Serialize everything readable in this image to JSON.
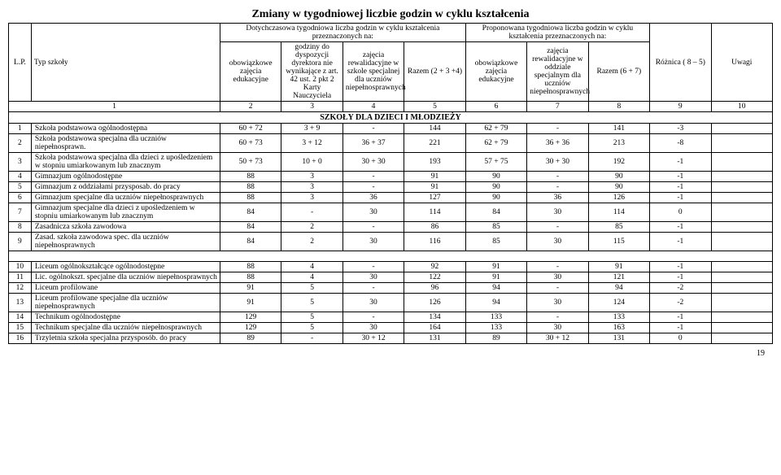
{
  "title": "Zmiany w tygodniowej liczbie godzin w cyklu kształcenia",
  "header": {
    "lp": "L.P.",
    "typ": "Typ szkoły",
    "dotych": "Dotychczasowa tygodniowa liczba godzin w cyklu kształcenia przeznaczonych na:",
    "prop": "Proponowana tygodniowa liczba godzin w cyklu kształcenia przeznaczonych na:",
    "obow": "obowiązkowe zajęcia edukacyjne",
    "godziny": "godziny do dyspozycji dyrektora nie wynikające z art. 42 ust. 2 pkt 2 Karty Nauczyciela",
    "rewal": "zajęcia rewalidacyjne w szkole specjalnej dla uczniów niepełnosprawnych",
    "razem1": "Razem (2 + 3 +4)",
    "rewal2": "zajęcia rewalidacyjne w oddziale specjalnym dla uczniów niepełnosprawnych",
    "razem2": "Razem (6 + 7)",
    "roznica": "Różnica ( 8 – 5)",
    "uwagi": "Uwagi",
    "nums": [
      "1",
      "2",
      "3",
      "4",
      "5",
      "6",
      "7",
      "8",
      "9",
      "10"
    ]
  },
  "section": "SZKOŁY  DLA  DZIECI  I  MŁODZIEŻY",
  "rows": [
    {
      "n": "1",
      "name": "Szkoła podstawowa ogólnodostępna",
      "v": [
        "60 + 72",
        "3 + 9",
        "-",
        "144",
        "62 + 79",
        "-",
        "141",
        "-3",
        ""
      ]
    },
    {
      "n": "2",
      "name": "Szkoła podstawowa specjalna dla uczniów niepełnosprawn.",
      "v": [
        "60 + 73",
        "3 + 12",
        "36 + 37",
        "221",
        "62 + 79",
        "36 + 36",
        "213",
        "-8",
        ""
      ]
    },
    {
      "n": "3",
      "name": "Szkoła podstawowa specjalna dla dzieci z upośledzeniem w stopniu umiarkowanym lub znacznym",
      "v": [
        "50 + 73",
        "10 + 0",
        "30 + 30",
        "193",
        "57 + 75",
        "30 + 30",
        "192",
        "-1",
        ""
      ]
    },
    {
      "n": "4",
      "name": "Gimnazjum ogólnodostępne",
      "v": [
        "88",
        "3",
        "-",
        "91",
        "90",
        "-",
        "90",
        "-1",
        ""
      ]
    },
    {
      "n": "5",
      "name": "Gimnazjum z oddziałami przysposab. do pracy",
      "v": [
        "88",
        "3",
        "-",
        "91",
        "90",
        "-",
        "90",
        "-1",
        ""
      ]
    },
    {
      "n": "6",
      "name": "Gimnazjum specjalne dla uczniów niepełnosprawnych",
      "v": [
        "88",
        "3",
        "36",
        "127",
        "90",
        "36",
        "126",
        "-1",
        ""
      ]
    },
    {
      "n": "7",
      "name": "Gimnazjum specjalne dla dzieci z upośledzeniem w stopniu umiarkowanym lub znacznym",
      "v": [
        "84",
        "-",
        "30",
        "114",
        "84",
        "30",
        "114",
        "0",
        ""
      ]
    },
    {
      "n": "8",
      "name": "Zasadnicza szkoła zawodowa",
      "v": [
        "84",
        "2",
        "-",
        "86",
        "85",
        "-",
        "85",
        "-1",
        ""
      ]
    },
    {
      "n": "9",
      "name": "Zasad. szkoła zawodowa spec. dla uczniów niepełnosprawnych",
      "v": [
        "84",
        "2",
        "30",
        "116",
        "85",
        "30",
        "115",
        "-1",
        ""
      ]
    },
    {
      "n": "10",
      "name": "Liceum ogólnokształcące ogólnodostępne",
      "v": [
        "88",
        "4",
        "-",
        "92",
        "91",
        "-",
        "91",
        "-1",
        ""
      ]
    },
    {
      "n": "11",
      "name": "Lic. ogólnokszt.  specjalne dla uczniów niepełnosprawnych",
      "v": [
        "88",
        "4",
        "30",
        "122",
        "91",
        "30",
        "121",
        "-1",
        ""
      ]
    },
    {
      "n": "12",
      "name": "Liceum profilowane",
      "v": [
        "91",
        "5",
        "-",
        "96",
        "94",
        "-",
        "94",
        "-2",
        ""
      ]
    },
    {
      "n": "13",
      "name": "Liceum profilowane specjalne dla uczniów niepełnosprawnych",
      "v": [
        "91",
        "5",
        "30",
        "126",
        "94",
        "30",
        "124",
        "-2",
        ""
      ]
    },
    {
      "n": "14",
      "name": "Technikum ogólnodostępne",
      "v": [
        "129",
        "5",
        "-",
        "134",
        "133",
        "-",
        "133",
        "-1",
        ""
      ]
    },
    {
      "n": "15",
      "name": "Technikum specjalne dla uczniów niepełnosprawnych",
      "v": [
        "129",
        "5",
        "30",
        "164",
        "133",
        "30",
        "163",
        "-1",
        ""
      ]
    },
    {
      "n": "16",
      "name": "Trzyletnia szkoła specjalna przysposób. do pracy",
      "v": [
        "89",
        "-",
        "30 + 12",
        "131",
        "89",
        "30 + 12",
        "131",
        "0",
        ""
      ]
    }
  ],
  "gapAfter": 9,
  "pageNum": "19"
}
